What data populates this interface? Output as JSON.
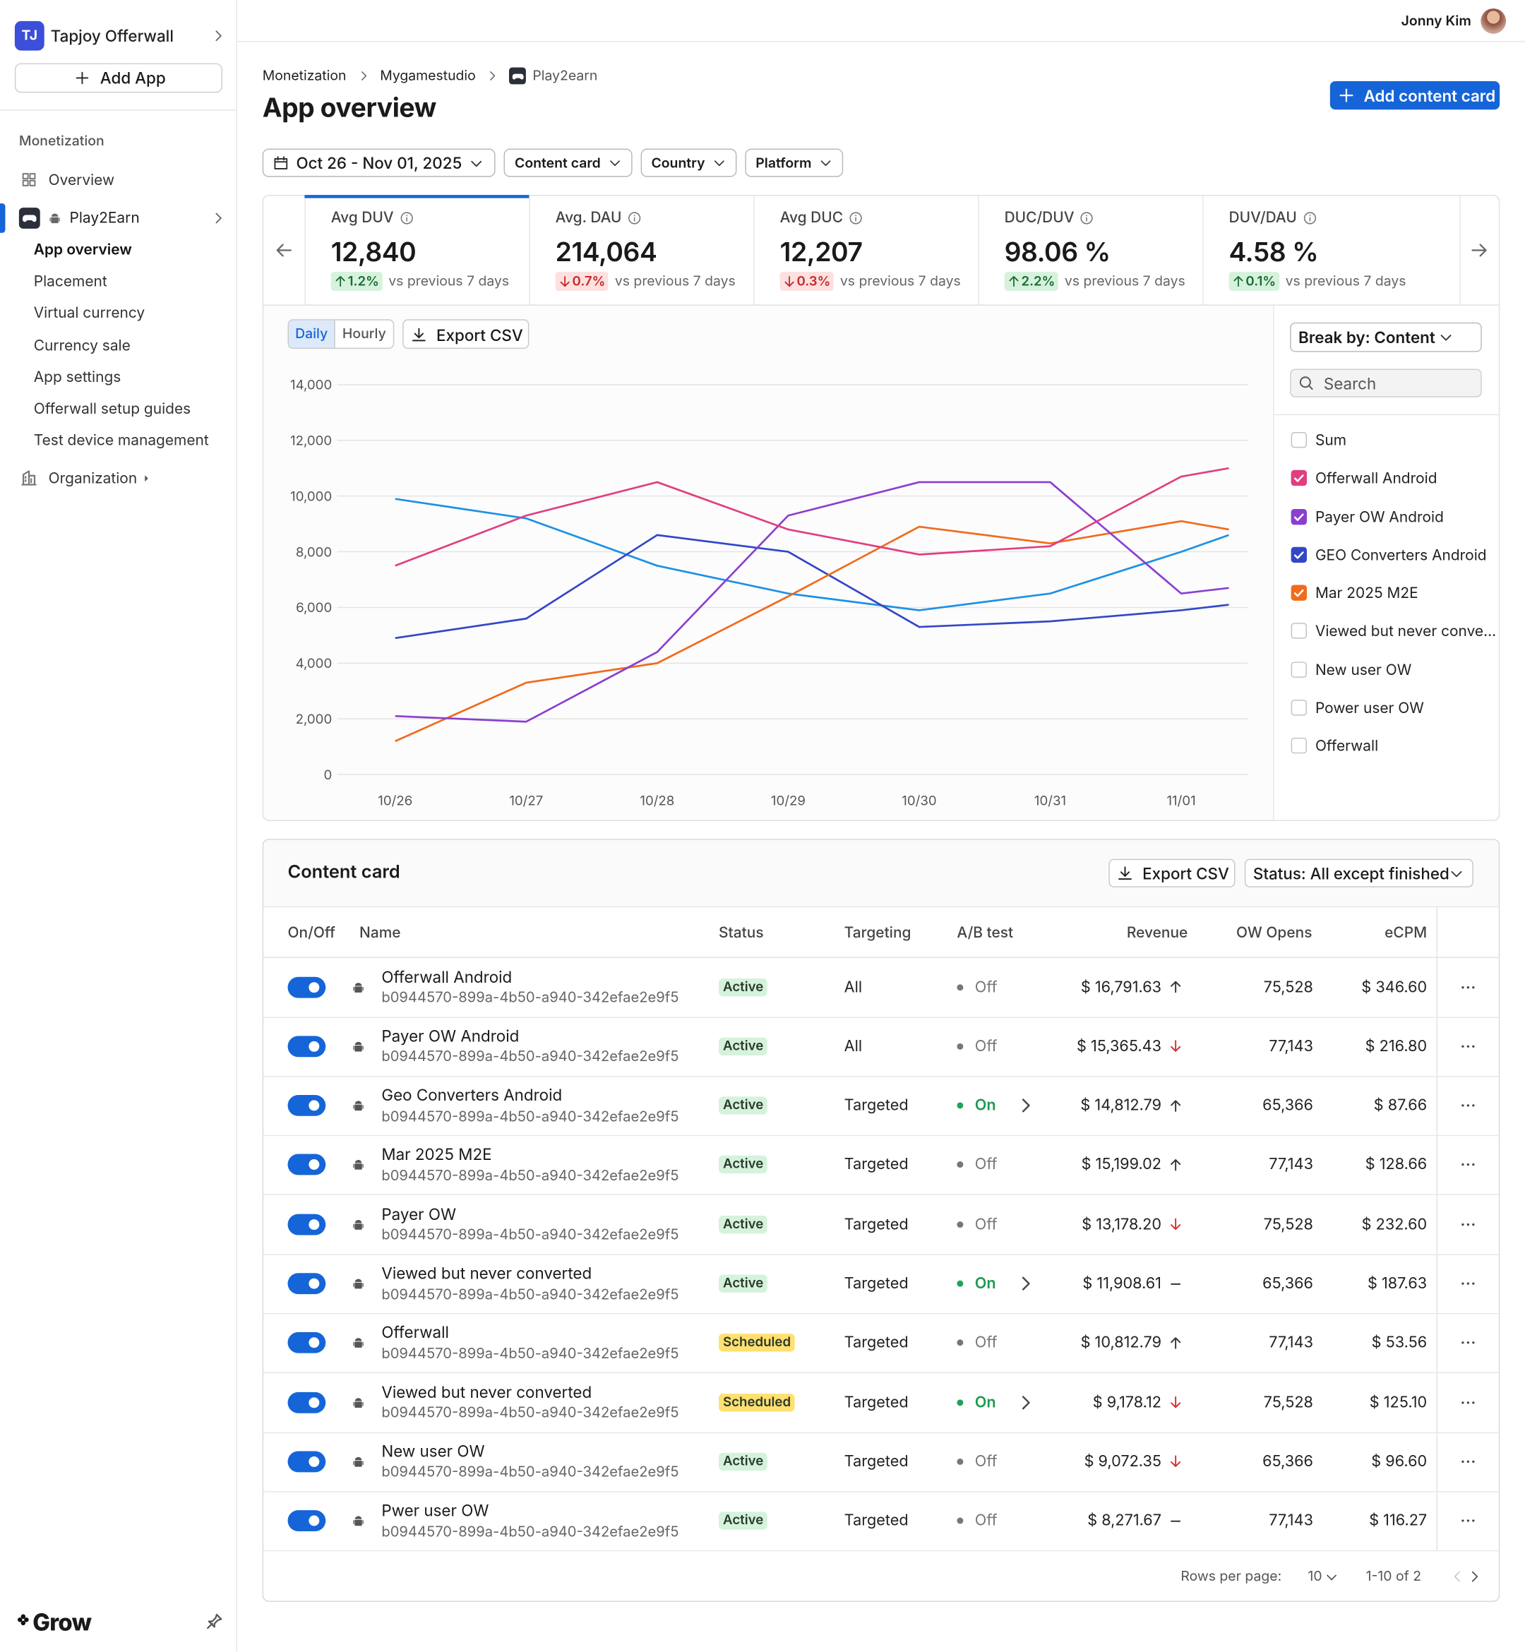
{
  "sidebar": {
    "org_initials": "TJ",
    "org_name": "Tapjoy Offerwall",
    "add_app": "Add App",
    "section": "Monetization",
    "overview": "Overview",
    "app_name": "Play2Earn",
    "app_items": [
      "App overview",
      "Placement",
      "Virtual currency",
      "Currency sale",
      "App settings",
      "Offerwall setup guides",
      "Test device management"
    ],
    "active_item": 0,
    "organization": "Organization",
    "brand": "Grow"
  },
  "header": {
    "user": "Jonny Kim",
    "breadcrumbs": [
      "Monetization",
      "Mygamestudio",
      "Play2earn"
    ],
    "title": "App overview",
    "add_button": "Add content card"
  },
  "filters": {
    "date": "Oct 26 - Nov 01, 2025",
    "dropdowns": [
      "Content card",
      "Country",
      "Platform"
    ]
  },
  "metrics": [
    {
      "label": "Avg DUV",
      "value": "12,840",
      "change": "1.2%",
      "direction": "up",
      "note": "vs previous 7 days"
    },
    {
      "label": "Avg. DAU",
      "value": "214,064",
      "change": "0.7%",
      "direction": "down",
      "note": "vs previous 7 days"
    },
    {
      "label": "Avg DUC",
      "value": "12,207",
      "change": "0.3%",
      "direction": "down",
      "note": "vs previous 7 days"
    },
    {
      "label": "DUC/DUV",
      "value": "98.06 %",
      "change": "2.2%",
      "direction": "up",
      "note": "vs previous 7 days"
    },
    {
      "label": "DUV/DAU",
      "value": "4.58 %",
      "change": "0.1%",
      "direction": "up",
      "note": "vs previous 7 days"
    }
  ],
  "chart_controls": {
    "granularity": [
      "Daily",
      "Hourly"
    ],
    "selected": 0,
    "export": "Export CSV",
    "break_by": "Break by: Content",
    "search": "Search"
  },
  "chart_data": {
    "type": "line",
    "categories": [
      "10/26",
      "10/27",
      "10/28",
      "10/29",
      "10/30",
      "10/31",
      "11/01",
      null
    ],
    "ylim": [
      0,
      14000
    ],
    "yticks": [
      0,
      {
        "value": 2000,
        "label": "2,000"
      },
      {
        "value": 4000,
        "label": "4,000"
      },
      {
        "value": 6000,
        "label": "6,000"
      },
      {
        "value": 8000,
        "label": "8,000"
      },
      {
        "value": 10000,
        "label": "10,000"
      },
      {
        "value": 12000,
        "label": "12,000"
      },
      {
        "value": 14000,
        "label": "14,000"
      }
    ],
    "grid": true,
    "series": [
      {
        "color": "#1b91e6",
        "values": [
          9900,
          9200,
          7500,
          6500,
          5900,
          6500,
          8000,
          8600
        ]
      },
      {
        "color": "#3347c6",
        "values": [
          4900,
          5600,
          8600,
          8000,
          5300,
          5500,
          5900,
          6100
        ]
      },
      {
        "color": "#f26a1b",
        "values": [
          1200,
          3300,
          4000,
          6400,
          8900,
          8300,
          9100,
          8800
        ]
      },
      {
        "color": "#8b3fcf",
        "values": [
          2100,
          1900,
          4400,
          9300,
          10500,
          10500,
          6500,
          6700
        ]
      },
      {
        "color": "#e13e80",
        "values": [
          7500,
          9300,
          10500,
          8800,
          7900,
          8200,
          10700,
          11000
        ]
      }
    ],
    "legend": [
      {
        "name": "Sum",
        "checked": false
      },
      {
        "name": "Offerwall Android",
        "checked": true,
        "color": "#e13e80"
      },
      {
        "name": "Payer OW Android",
        "checked": true,
        "color": "#8b3fcf"
      },
      {
        "name": "GEO Converters Android",
        "checked": true,
        "color": "#3347c6"
      },
      {
        "name": "Mar 2025 M2E",
        "checked": true,
        "color": "#f26a1b"
      },
      {
        "name": "Viewed but never conve...",
        "checked": false
      },
      {
        "name": "New user OW",
        "checked": false
      },
      {
        "name": "Power user OW",
        "checked": false
      },
      {
        "name": "Offerwall",
        "checked": false
      }
    ]
  },
  "table": {
    "title": "Content card",
    "export": "Export CSV",
    "status_filter": "Status: All except finished",
    "columns": [
      "On/Off",
      "Name",
      "Status",
      "Targeting",
      "A/B test",
      "Revenue",
      "OW Opens",
      "eCPM"
    ],
    "rows": [
      {
        "on": true,
        "name": "Offerwall Android",
        "id": "b0944570-899a-4b50-a940-342efae2e9f5",
        "status": "Active",
        "status_color": "#d5f2dc",
        "targeting": "All",
        "ab_test": "Off",
        "ab_active": false,
        "revenue": "$ 16,791.63",
        "trend": "up",
        "opens": "75,528",
        "ecpm": "$ 346.60"
      },
      {
        "on": true,
        "name": "Payer OW Android",
        "id": "b0944570-899a-4b50-a940-342efae2e9f5",
        "status": "Active",
        "status_color": "#d5f2dc",
        "targeting": "All",
        "ab_test": "Off",
        "ab_active": false,
        "revenue": "$ 15,365.43",
        "trend": "down",
        "opens": "77,143",
        "ecpm": "$ 216.80"
      },
      {
        "on": true,
        "name": "Geo Converters Android",
        "id": "b0944570-899a-4b50-a940-342efae2e9f5",
        "status": "Active",
        "status_color": "#d5f2dc",
        "targeting": "Targeted",
        "ab_test": "On",
        "ab_active": true,
        "revenue": "$ 14,812.79",
        "trend": "up",
        "opens": "65,366",
        "ecpm": "$ 87.66"
      },
      {
        "on": true,
        "name": "Mar 2025 M2E",
        "id": "b0944570-899a-4b50-a940-342efae2e9f5",
        "status": "Active",
        "status_color": "#d5f2dc",
        "targeting": "Targeted",
        "ab_test": "Off",
        "ab_active": false,
        "revenue": "$ 15,199.02",
        "trend": "up",
        "opens": "77,143",
        "ecpm": "$ 128.66"
      },
      {
        "on": true,
        "name": "Payer OW",
        "id": "b0944570-899a-4b50-a940-342efae2e9f5",
        "status": "Active",
        "status_color": "#d5f2dc",
        "targeting": "Targeted",
        "ab_test": "Off",
        "ab_active": false,
        "revenue": "$ 13,178.20",
        "trend": "down",
        "opens": "75,528",
        "ecpm": "$ 232.60"
      },
      {
        "on": true,
        "name": "Viewed but never converted",
        "id": "b0944570-899a-4b50-a940-342efae2e9f5",
        "status": "Active",
        "status_color": "#d5f2dc",
        "targeting": "Targeted",
        "ab_test": "On",
        "ab_active": true,
        "revenue": "$ 11,908.61",
        "trend": "flat",
        "opens": "65,366",
        "ecpm": "$ 187.63"
      },
      {
        "on": true,
        "name": "Offerwall",
        "id": "b0944570-899a-4b50-a940-342efae2e9f5",
        "status": "Scheduled",
        "status_color": "#ffe070",
        "targeting": "Targeted",
        "ab_test": "Off",
        "ab_active": false,
        "revenue": "$ 10,812.79",
        "trend": "up",
        "opens": "77,143",
        "ecpm": "$ 53.56"
      },
      {
        "on": true,
        "name": "Viewed but never converted",
        "id": "b0944570-899a-4b50-a940-342efae2e9f5",
        "status": "Scheduled",
        "status_color": "#ffe070",
        "targeting": "Targeted",
        "ab_test": "On",
        "ab_active": true,
        "revenue": "$ 9,178.12",
        "trend": "down",
        "opens": "75,528",
        "ecpm": "$ 125.10"
      },
      {
        "on": true,
        "name": "New user OW",
        "id": "b0944570-899a-4b50-a940-342efae2e9f5",
        "status": "Active",
        "status_color": "#d5f2dc",
        "targeting": "Targeted",
        "ab_test": "Off",
        "ab_active": false,
        "revenue": "$ 9,072.35",
        "trend": "down",
        "opens": "65,366",
        "ecpm": "$ 96.60"
      },
      {
        "on": true,
        "name": "Pwer user OW",
        "id": "b0944570-899a-4b50-a940-342efae2e9f5",
        "status": "Active",
        "status_color": "#d5f2dc",
        "targeting": "Targeted",
        "ab_test": "Off",
        "ab_active": false,
        "revenue": "$ 8,271.67",
        "trend": "flat",
        "opens": "77,143",
        "ecpm": "$ 116.27"
      }
    ],
    "footer": {
      "rows_per_page": "Rows per page:",
      "per_page": "10",
      "range": "1-10 of 2"
    }
  }
}
